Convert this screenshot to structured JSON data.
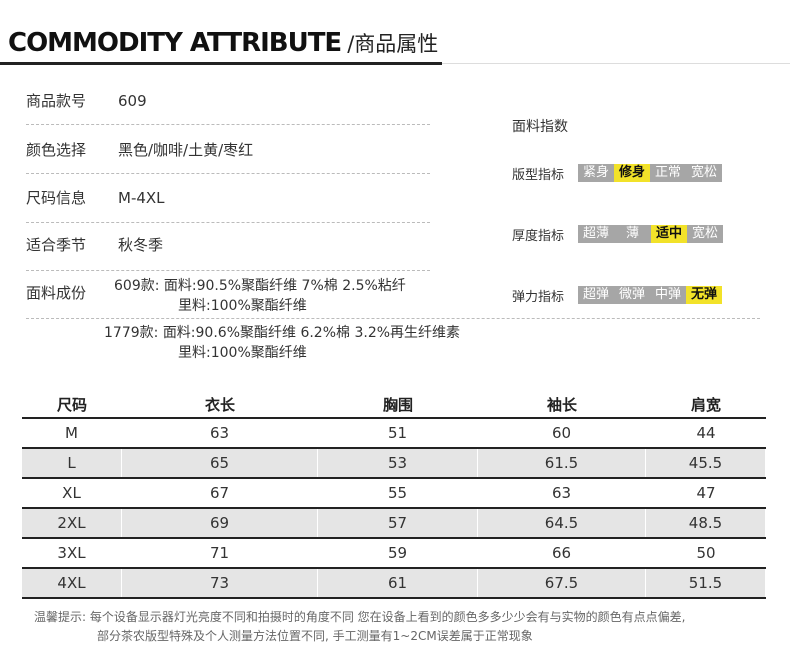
{
  "header": {
    "title_en": "COMMODITY ATTRIBUTE",
    "title_cn": "/商品属性"
  },
  "attributes": [
    {
      "label": "商品款号",
      "value": "609"
    },
    {
      "label": "颜色选择",
      "value": "黑色/咖啡/土黄/枣红"
    },
    {
      "label": "尺码信息",
      "value": "M-4XL"
    },
    {
      "label": "适合季节",
      "value": "秋冬季"
    },
    {
      "label": "面料成份",
      "value": ""
    }
  ],
  "fabric": [
    {
      "code": "609款:",
      "line1": "面料:90.5%聚酯纤维 7%棉 2.5%粘纤",
      "line2": "里料:100%聚酯纤维"
    },
    {
      "code": "1779款:",
      "line1": "面料:90.6%聚酯纤维 6.2%棉 3.2%再生纤维素",
      "line2": "里料:100%聚酯纤维"
    }
  ],
  "indices": {
    "title": "面料指数",
    "rows": [
      {
        "label": "版型指标",
        "options": [
          "紧身",
          "修身",
          "正常",
          "宽松"
        ],
        "selected": 1
      },
      {
        "label": "厚度指标",
        "options": [
          "超薄",
          "薄",
          "适中",
          "宽松"
        ],
        "selected": 2
      },
      {
        "label": "弹力指标",
        "options": [
          "超弹",
          "微弹",
          "中弹",
          "无弹"
        ],
        "selected": 3
      }
    ]
  },
  "size_table": {
    "headers": [
      "尺码",
      "衣长",
      "胸围",
      "袖长",
      "肩宽"
    ],
    "rows": [
      [
        "M",
        "63",
        "51",
        "60",
        "44"
      ],
      [
        "L",
        "65",
        "53",
        "61.5",
        "45.5"
      ],
      [
        "XL",
        "67",
        "55",
        "63",
        "47"
      ],
      [
        "2XL",
        "69",
        "57",
        "64.5",
        "48.5"
      ],
      [
        "3XL",
        "71",
        "59",
        "66",
        "50"
      ],
      [
        "4XL",
        "73",
        "61",
        "67.5",
        "51.5"
      ]
    ]
  },
  "notes": {
    "line1": "温馨提示: 每个设备显示器灯光亮度不同和拍摄时的角度不同 您在设备上看到的颜色多多少少会有与实物的颜色有点点偏差,",
    "line2": "部分茶农版型特殊及个人测量方法位置不同, 手工测量有1~2CM误差属于正常现象"
  },
  "colors": {
    "selected_index": "#f2e229",
    "index_bg": "#a6a6a6",
    "row_shade": "#e5e5e5"
  }
}
